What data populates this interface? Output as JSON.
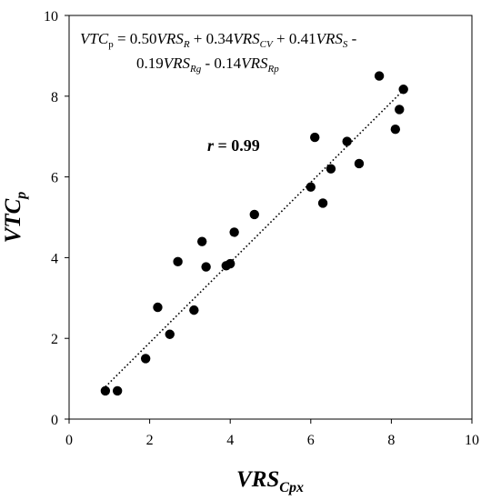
{
  "chart_data": {
    "type": "scatter",
    "title": "",
    "xlabel": {
      "main": "VRS",
      "sub": "Cpx"
    },
    "ylabel": {
      "main": "VTC",
      "sub": "p"
    },
    "xlim": [
      0,
      10
    ],
    "ylim": [
      0,
      10
    ],
    "xticks": [
      0,
      2,
      4,
      6,
      8,
      10
    ],
    "yticks": [
      0,
      2,
      4,
      6,
      8,
      10
    ],
    "grid": false,
    "legend": "none",
    "colors": {
      "points": "#000000",
      "axes": "#000000",
      "trendline": "#000000"
    },
    "series": [
      {
        "points": [
          {
            "x": 0.9,
            "y": 0.7
          },
          {
            "x": 1.2,
            "y": 0.7
          },
          {
            "x": 1.9,
            "y": 1.5
          },
          {
            "x": 2.2,
            "y": 2.77
          },
          {
            "x": 2.5,
            "y": 2.1
          },
          {
            "x": 2.7,
            "y": 3.9
          },
          {
            "x": 3.1,
            "y": 2.7
          },
          {
            "x": 3.3,
            "y": 4.4
          },
          {
            "x": 3.4,
            "y": 3.77
          },
          {
            "x": 3.9,
            "y": 3.8
          },
          {
            "x": 4.0,
            "y": 3.85
          },
          {
            "x": 4.1,
            "y": 4.63
          },
          {
            "x": 4.6,
            "y": 5.07
          },
          {
            "x": 6.0,
            "y": 5.75
          },
          {
            "x": 6.1,
            "y": 6.98
          },
          {
            "x": 6.3,
            "y": 5.35
          },
          {
            "x": 6.5,
            "y": 6.2
          },
          {
            "x": 6.9,
            "y": 6.88
          },
          {
            "x": 7.2,
            "y": 6.33
          },
          {
            "x": 7.7,
            "y": 8.5
          },
          {
            "x": 8.1,
            "y": 7.18
          },
          {
            "x": 8.2,
            "y": 7.67
          },
          {
            "x": 8.3,
            "y": 8.17
          }
        ]
      }
    ],
    "trendline": {
      "style": "dotted",
      "x_start": 0.9,
      "y_start": 0.8,
      "x_end": 8.3,
      "y_end": 8.15
    },
    "annotations": {
      "equation_line1": [
        {
          "text": "VTC",
          "italic": true,
          "sub": false
        },
        {
          "text": "p",
          "italic": false,
          "sub": true
        },
        {
          "text": " = 0.50",
          "italic": false,
          "sub": false
        },
        {
          "text": "VRS",
          "italic": true,
          "sub": false
        },
        {
          "text": "R",
          "italic": true,
          "sub": true
        },
        {
          "text": " + 0.34",
          "italic": false,
          "sub": false
        },
        {
          "text": "VRS",
          "italic": true,
          "sub": false
        },
        {
          "text": "CV",
          "italic": true,
          "sub": true
        },
        {
          "text": " + 0.41",
          "italic": false,
          "sub": false
        },
        {
          "text": "VRS",
          "italic": true,
          "sub": false
        },
        {
          "text": "S",
          "italic": true,
          "sub": true
        },
        {
          "text": " -",
          "italic": false,
          "sub": false
        }
      ],
      "equation_line2": [
        {
          "text": "0.19",
          "italic": false,
          "sub": false
        },
        {
          "text": "VRS",
          "italic": true,
          "sub": false
        },
        {
          "text": "Rg",
          "italic": true,
          "sub": true
        },
        {
          "text": " - 0.14",
          "italic": false,
          "sub": false
        },
        {
          "text": "VRS",
          "italic": true,
          "sub": false
        },
        {
          "text": "Rp",
          "italic": true,
          "sub": true
        }
      ],
      "r_label": "r",
      "r_value": " = 0.99"
    }
  }
}
